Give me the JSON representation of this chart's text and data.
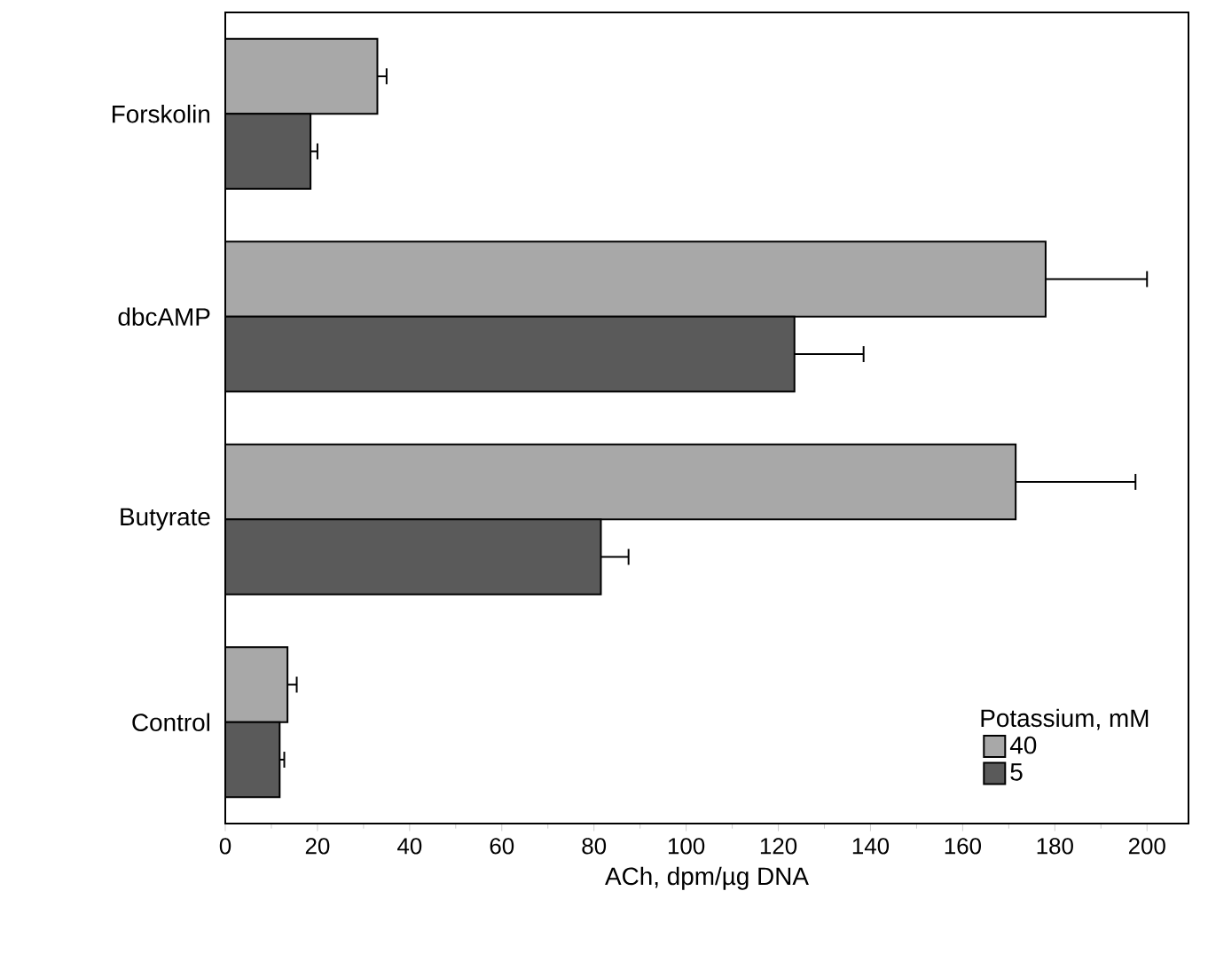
{
  "chart_data": {
    "type": "bar",
    "orientation": "horizontal",
    "categories": [
      "Forskolin",
      "dbcAMP",
      "Butyrate",
      "Control"
    ],
    "xlabel": "ACh, dpm/µg DNA",
    "legend_title": "Potassium, mM",
    "series": [
      {
        "name": "40",
        "color": "#a8a8a8",
        "values": [
          33,
          178,
          171.5,
          13.5
        ],
        "errors": [
          2,
          22,
          26,
          2
        ]
      },
      {
        "name": "5",
        "color": "#5a5a5a",
        "values": [
          18.5,
          123.5,
          81.5,
          11.8
        ],
        "errors": [
          1.5,
          15,
          6,
          1
        ]
      }
    ],
    "xlim": [
      0,
      209
    ],
    "xticks": [
      0,
      20,
      40,
      60,
      80,
      100,
      120,
      140,
      160,
      180,
      200
    ],
    "grid": false,
    "legend": "bottom right"
  }
}
